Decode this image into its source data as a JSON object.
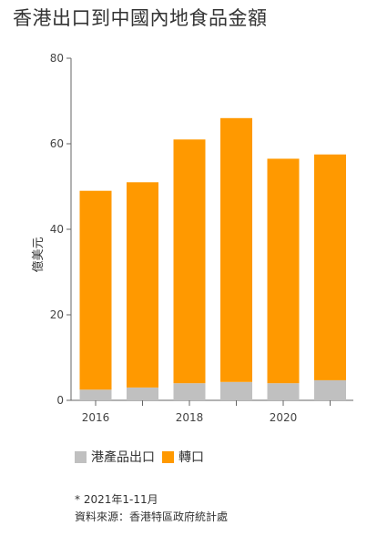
{
  "title": "香港出口到中國內地食品金額",
  "chart_data": {
    "type": "bar",
    "stacked": true,
    "x": [
      2016,
      2017,
      2018,
      2019,
      2020,
      2021
    ],
    "x_tick_labels": [
      "2016",
      "",
      "2018",
      "",
      "2020",
      ""
    ],
    "ylabel": "億美元",
    "ylim": [
      0,
      80
    ],
    "y_ticks": [
      0,
      20,
      40,
      60,
      80
    ],
    "grid": false,
    "legend_position": "bottom-left",
    "series": [
      {
        "name": "港產品出口",
        "color": "#c0c0c0",
        "values": [
          2.5,
          3.0,
          4.0,
          4.3,
          4.0,
          4.7
        ]
      },
      {
        "name": "轉口",
        "color": "#ff9900",
        "values": [
          46.5,
          48.0,
          57.0,
          61.7,
          52.5,
          52.8
        ]
      }
    ]
  },
  "notes": {
    "footnote": "* 2021年1-11月",
    "source": "資料來源：香港特區政府統計處"
  }
}
